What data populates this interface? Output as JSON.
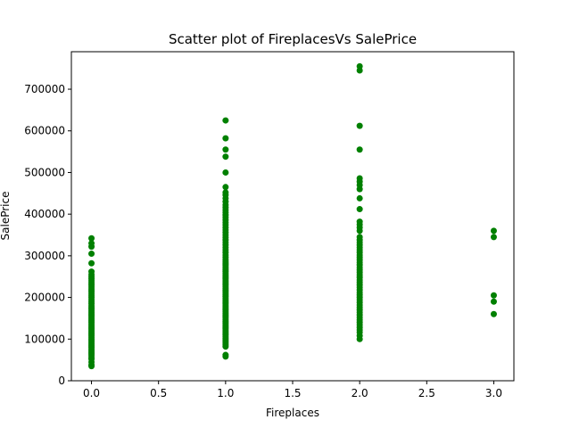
{
  "chart_data": {
    "type": "scatter",
    "title": "Scatter plot of FireplacesVs SalePrice",
    "xlabel": "Fireplaces",
    "ylabel": "SalePrice",
    "xlim": [
      -0.15,
      3.15
    ],
    "ylim": [
      0,
      790000
    ],
    "x_ticks": [
      0.0,
      0.5,
      1.0,
      1.5,
      2.0,
      2.5,
      3.0
    ],
    "x_tick_labels": [
      "0.0",
      "0.5",
      "1.0",
      "1.5",
      "2.0",
      "2.5",
      "3.0"
    ],
    "y_ticks": [
      0,
      100000,
      200000,
      300000,
      400000,
      500000,
      600000,
      700000
    ],
    "y_tick_labels": [
      "0",
      "100000",
      "200000",
      "300000",
      "400000",
      "500000",
      "600000",
      "700000"
    ],
    "grid": false,
    "marker_color": "#008000",
    "series": [
      {
        "x": 0,
        "values": [
          35000,
          38000,
          45000,
          52000,
          55000,
          60000,
          64000,
          68000,
          72000,
          76000,
          80000,
          84000,
          88000,
          92000,
          96000,
          100000,
          104000,
          108000,
          112000,
          116000,
          120000,
          124000,
          128000,
          132000,
          136000,
          140000,
          144000,
          148000,
          152000,
          156000,
          160000,
          164000,
          168000,
          172000,
          176000,
          180000,
          185000,
          190000,
          195000,
          200000,
          205000,
          210000,
          215000,
          220000,
          225000,
          230000,
          235000,
          240000,
          245000,
          250000,
          255000,
          262000,
          282000,
          305000,
          322000,
          330000,
          342000
        ]
      },
      {
        "x": 1,
        "values": [
          58000,
          62000,
          82000,
          86000,
          90000,
          94000,
          98000,
          102000,
          106000,
          110000,
          114000,
          118000,
          122000,
          126000,
          130000,
          134000,
          138000,
          142000,
          146000,
          150000,
          154000,
          158000,
          162000,
          166000,
          170000,
          174000,
          178000,
          182000,
          186000,
          190000,
          194000,
          198000,
          202000,
          206000,
          210000,
          214000,
          218000,
          222000,
          226000,
          230000,
          234000,
          238000,
          242000,
          246000,
          250000,
          254000,
          258000,
          262000,
          266000,
          270000,
          274000,
          278000,
          282000,
          286000,
          290000,
          296000,
          302000,
          308000,
          314000,
          320000,
          326000,
          332000,
          338000,
          344000,
          350000,
          356000,
          362000,
          368000,
          374000,
          380000,
          386000,
          392000,
          398000,
          404000,
          410000,
          416000,
          422000,
          430000,
          438000,
          446000,
          452000,
          465000,
          500000,
          538000,
          555000,
          582000,
          625000
        ]
      },
      {
        "x": 2,
        "values": [
          100000,
          108000,
          116000,
          122000,
          128000,
          134000,
          140000,
          146000,
          152000,
          158000,
          164000,
          170000,
          176000,
          182000,
          188000,
          194000,
          200000,
          206000,
          212000,
          218000,
          224000,
          230000,
          236000,
          242000,
          248000,
          254000,
          260000,
          266000,
          272000,
          278000,
          284000,
          290000,
          296000,
          302000,
          308000,
          314000,
          320000,
          326000,
          332000,
          338000,
          345000,
          360000,
          368000,
          375000,
          382000,
          412000,
          438000,
          460000,
          470000,
          478000,
          486000,
          555000,
          612000,
          745000,
          755000
        ]
      },
      {
        "x": 3,
        "values": [
          160000,
          190000,
          205000,
          345000,
          360000
        ]
      }
    ]
  }
}
